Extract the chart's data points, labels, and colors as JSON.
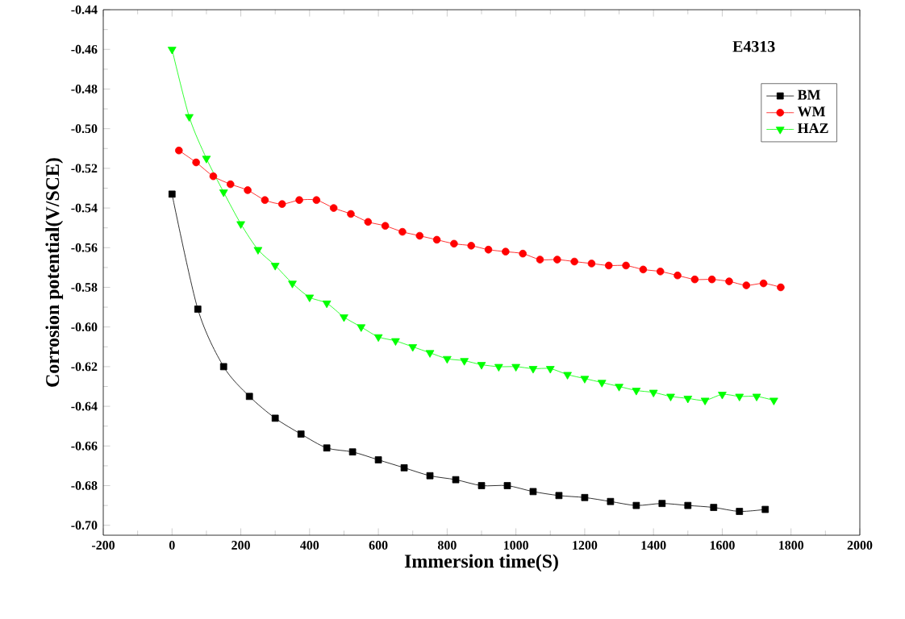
{
  "chart_data": {
    "type": "line",
    "xlabel": "Immersion time(S)",
    "ylabel": "Corrosion potential(V/SCE)",
    "legend_title": "E4313",
    "legend": "top right",
    "xlim": [
      -200,
      2000
    ],
    "ylim": [
      -0.705,
      -0.44
    ],
    "xticks": [
      -200,
      0,
      200,
      400,
      600,
      800,
      1000,
      1200,
      1400,
      1600,
      1800,
      2000
    ],
    "yticks": [
      {
        "value": -0.44,
        "label": "-0.44"
      },
      {
        "value": -0.46,
        "label": "-0.46"
      },
      {
        "value": -0.48,
        "label": "-0.48"
      },
      {
        "value": -0.5,
        "label": "-0.50"
      },
      {
        "value": -0.52,
        "label": "-0.52"
      },
      {
        "value": -0.54,
        "label": "-0.54"
      },
      {
        "value": -0.56,
        "label": "-0.56"
      },
      {
        "value": -0.58,
        "label": "-0.58"
      },
      {
        "value": -0.6,
        "label": "-0.60"
      },
      {
        "value": -0.62,
        "label": "-0.62"
      },
      {
        "value": -0.64,
        "label": "-0.64"
      },
      {
        "value": -0.66,
        "label": "-0.66"
      },
      {
        "value": -0.68,
        "label": "-0.68"
      },
      {
        "value": -0.7,
        "label": "-0.70"
      }
    ],
    "series": [
      {
        "name": "BM",
        "color": "#000000",
        "marker": "square",
        "x": [
          0,
          75,
          150,
          225,
          300,
          375,
          450,
          525,
          600,
          675,
          750,
          825,
          900,
          975,
          1050,
          1125,
          1200,
          1275,
          1350,
          1425,
          1500,
          1575,
          1650,
          1725
        ],
        "values": [
          -0.533,
          -0.591,
          -0.62,
          -0.635,
          -0.646,
          -0.654,
          -0.661,
          -0.663,
          -0.667,
          -0.671,
          -0.675,
          -0.677,
          -0.68,
          -0.68,
          -0.683,
          -0.685,
          -0.686,
          -0.688,
          -0.69,
          -0.689,
          -0.69,
          -0.691,
          -0.693,
          -0.692
        ]
      },
      {
        "name": "WM",
        "color": "#ff0000",
        "marker": "circle",
        "x": [
          20,
          70,
          120,
          170,
          220,
          270,
          320,
          370,
          420,
          470,
          520,
          570,
          620,
          670,
          720,
          770,
          820,
          870,
          920,
          970,
          1020,
          1070,
          1120,
          1170,
          1220,
          1270,
          1320,
          1370,
          1420,
          1470,
          1520,
          1570,
          1620,
          1670,
          1720,
          1770
        ],
        "values": [
          -0.511,
          -0.517,
          -0.524,
          -0.528,
          -0.531,
          -0.536,
          -0.538,
          -0.536,
          -0.536,
          -0.54,
          -0.543,
          -0.547,
          -0.549,
          -0.552,
          -0.554,
          -0.556,
          -0.558,
          -0.559,
          -0.561,
          -0.562,
          -0.563,
          -0.566,
          -0.566,
          -0.567,
          -0.568,
          -0.569,
          -0.569,
          -0.571,
          -0.572,
          -0.574,
          -0.576,
          -0.576,
          -0.577,
          -0.579,
          -0.578,
          -0.58
        ]
      },
      {
        "name": "HAZ",
        "color": "#00ff00",
        "marker": "triangle",
        "x": [
          0,
          50,
          100,
          150,
          200,
          250,
          300,
          350,
          400,
          450,
          500,
          550,
          600,
          650,
          700,
          750,
          800,
          850,
          900,
          950,
          1000,
          1050,
          1100,
          1150,
          1200,
          1250,
          1300,
          1350,
          1400,
          1450,
          1500,
          1550,
          1600,
          1650,
          1700,
          1750
        ],
        "values": [
          -0.46,
          -0.494,
          -0.515,
          -0.532,
          -0.548,
          -0.561,
          -0.569,
          -0.578,
          -0.585,
          -0.588,
          -0.595,
          -0.6,
          -0.605,
          -0.607,
          -0.61,
          -0.613,
          -0.616,
          -0.617,
          -0.619,
          -0.62,
          -0.62,
          -0.621,
          -0.621,
          -0.624,
          -0.626,
          -0.628,
          -0.63,
          -0.632,
          -0.633,
          -0.635,
          -0.636,
          -0.637,
          -0.634,
          -0.635,
          -0.635,
          -0.637
        ]
      }
    ]
  }
}
